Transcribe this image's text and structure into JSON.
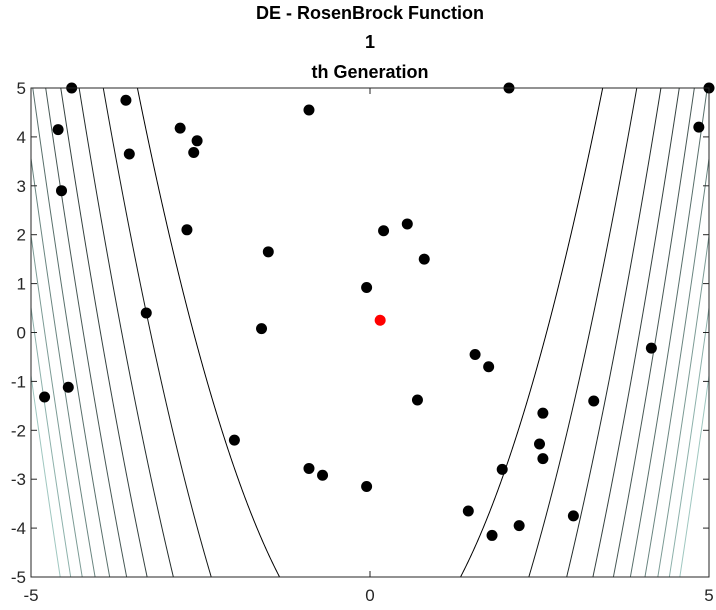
{
  "chart_data": {
    "type": "scatter",
    "title": [
      "DE - RosenBrock Function",
      "1",
      "th Generation"
    ],
    "xlim": [
      -5,
      5
    ],
    "ylim": [
      -5,
      5
    ],
    "xticks": [
      -5,
      0,
      5
    ],
    "yticks": [
      -5,
      -4,
      -3,
      -2,
      -1,
      0,
      1,
      2,
      3,
      4,
      5
    ],
    "contour": "Rosenbrock function f(x,y) = (1-x)^2 + 100(y-x^2)^2 level curves",
    "grid": false,
    "colors": {
      "population": "#000000",
      "best": "#ff0000",
      "contour_dark": "#000000",
      "contour_light": "#9fc7c0"
    },
    "population": [
      [
        -4.4,
        5.0
      ],
      [
        -4.6,
        4.15
      ],
      [
        -4.55,
        2.9
      ],
      [
        -3.6,
        4.75
      ],
      [
        -3.55,
        3.65
      ],
      [
        -2.8,
        4.18
      ],
      [
        -2.55,
        3.92
      ],
      [
        -2.6,
        3.68
      ],
      [
        -2.7,
        2.1
      ],
      [
        -1.5,
        1.65
      ],
      [
        -0.9,
        4.55
      ],
      [
        -3.3,
        0.4
      ],
      [
        -1.6,
        0.08
      ],
      [
        -4.8,
        -1.32
      ],
      [
        -4.45,
        -1.12
      ],
      [
        -2.0,
        -2.2
      ],
      [
        -0.9,
        -2.78
      ],
      [
        -0.7,
        -2.92
      ],
      [
        -0.05,
        0.92
      ],
      [
        0.2,
        2.08
      ],
      [
        0.55,
        2.22
      ],
      [
        0.8,
        1.5
      ],
      [
        -0.05,
        -3.15
      ],
      [
        0.7,
        -1.38
      ],
      [
        1.55,
        -0.45
      ],
      [
        1.75,
        -0.7
      ],
      [
        2.05,
        5.0
      ],
      [
        2.55,
        -1.65
      ],
      [
        2.5,
        -2.28
      ],
      [
        2.55,
        -2.58
      ],
      [
        1.95,
        -2.8
      ],
      [
        2.2,
        -3.95
      ],
      [
        1.45,
        -3.65
      ],
      [
        1.8,
        -4.15
      ],
      [
        3.3,
        -1.4
      ],
      [
        3.0,
        -3.75
      ],
      [
        4.15,
        -0.32
      ],
      [
        4.85,
        4.2
      ],
      [
        5.0,
        5.0
      ]
    ],
    "best": [
      [
        0.15,
        0.25
      ]
    ]
  }
}
